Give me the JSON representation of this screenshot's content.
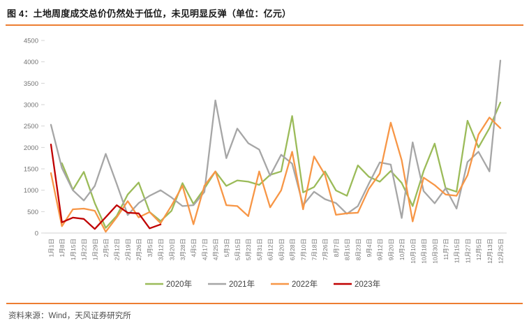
{
  "figure": {
    "title": "图 4：土地周度成交总价仍然处于低位，未见明显反弹（单位：亿元）",
    "source": "资料来源：Wind，天风证券研究所"
  },
  "colors": {
    "accent_rule": "#ED7D31",
    "axis_line": "#D9D9D9",
    "tick_mark": "#C9C9C9",
    "axis_text": "#737373",
    "legend_text": "#404040"
  },
  "chart_data": {
    "type": "line",
    "title": "土地周度成交总价",
    "unit": "亿元",
    "grid": false,
    "legend_position": "bottom",
    "ylim": [
      0,
      4500
    ],
    "y_tick_step": 500,
    "categories": [
      "1月1日",
      "1月8日",
      "1月15日",
      "1月22日",
      "1月29日",
      "2月5日",
      "2月12日",
      "2月19日",
      "2月26日",
      "3月5日",
      "3月12日",
      "3月20日",
      "3月28日",
      "4月5日",
      "4月17日",
      "4月25日",
      "5月3日",
      "5月15日",
      "5月23日",
      "5月31日",
      "6月12日",
      "6月20日",
      "6月28日",
      "7月10日",
      "7月18日",
      "7月26日",
      "8月7日",
      "8月15日",
      "8月23日",
      "9月4日",
      "9月12日",
      "9月20日",
      "10月2日",
      "10月10日",
      "10月18日",
      "10月30日",
      "11月7日",
      "11月15日",
      "11月27日",
      "12月5日",
      "12月13日",
      "12月25日"
    ],
    "series": [
      {
        "name": "2020年",
        "color": "#9BBB59",
        "values": [
          null,
          1630,
          1010,
          1430,
          700,
          120,
          400,
          900,
          1180,
          490,
          280,
          520,
          1165,
          680,
          1040,
          1440,
          1100,
          1230,
          1200,
          1125,
          1360,
          1440,
          2735,
          950,
          1075,
          1440,
          995,
          870,
          1580,
          1315,
          1200,
          1450,
          1170,
          630,
          1450,
          2090,
          1050,
          965,
          2625,
          2000,
          2450,
          3050
        ]
      },
      {
        "name": "2021年",
        "color": "#A6A6A6",
        "values": [
          2530,
          1520,
          1000,
          760,
          1100,
          1850,
          1150,
          420,
          700,
          870,
          1000,
          830,
          630,
          650,
          960,
          3100,
          1750,
          2440,
          2100,
          1950,
          1340,
          1830,
          1620,
          650,
          965,
          790,
          700,
          450,
          630,
          1155,
          1650,
          1600,
          350,
          2120,
          980,
          695,
          1045,
          570,
          1660,
          1900,
          1440,
          4030
        ]
      },
      {
        "name": "2022年",
        "color": "#F79646",
        "values": [
          1400,
          160,
          555,
          570,
          520,
          30,
          365,
          745,
          365,
          490,
          230,
          640,
          1105,
          205,
          1105,
          1440,
          650,
          630,
          395,
          1440,
          600,
          1000,
          1900,
          555,
          1790,
          1360,
          425,
          460,
          475,
          1030,
          1390,
          2580,
          1700,
          270,
          1295,
          1120,
          900,
          870,
          1350,
          2300,
          2700,
          2450
        ]
      },
      {
        "name": "2023年",
        "color": "#C00000",
        "values": [
          2070,
          250,
          360,
          330,
          95,
          370,
          650,
          475,
          460,
          110,
          200
        ]
      }
    ]
  }
}
